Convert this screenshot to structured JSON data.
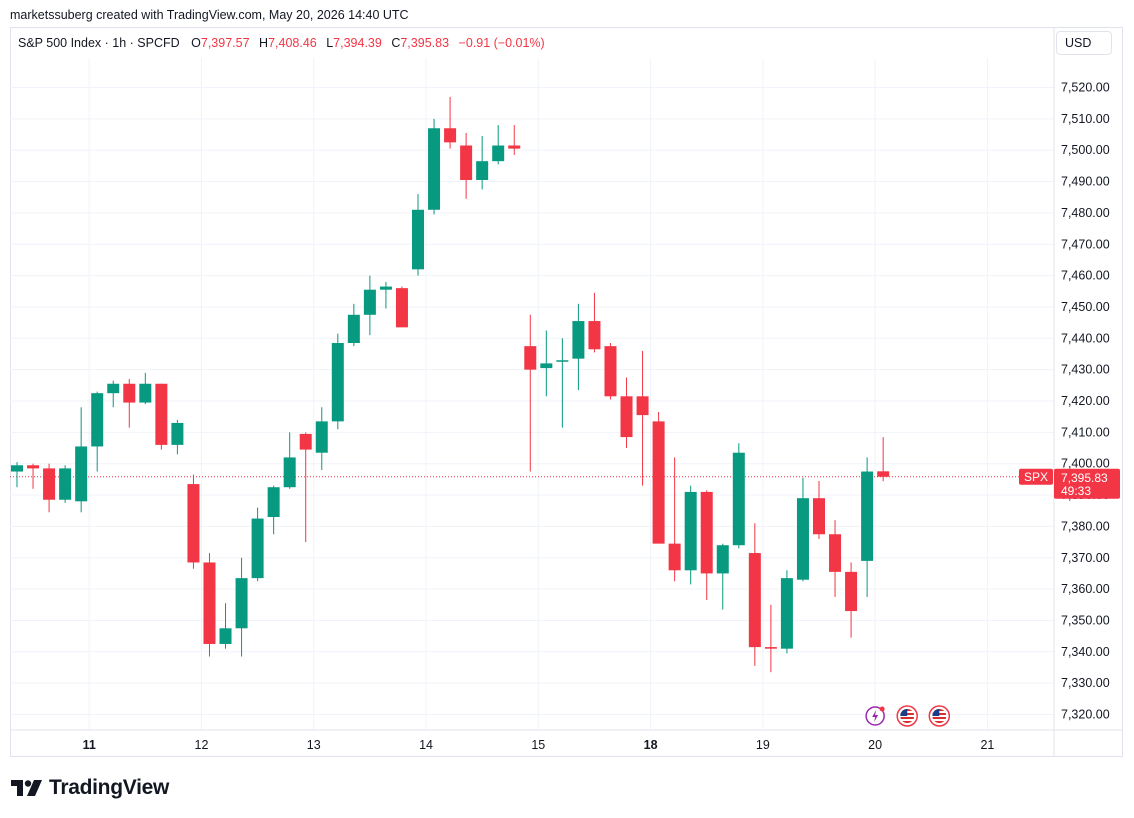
{
  "attribution": "marketssuberg created with TradingView.com, May 20, 2026 14:40 UTC",
  "legend": {
    "symbol": "S&P 500 Index · 1h · SPCFD",
    "open_label": "O",
    "open": "7,397.57",
    "high_label": "H",
    "high": "7,408.46",
    "low_label": "L",
    "low": "7,394.39",
    "close_label": "C",
    "close": "7,395.83",
    "change": "−0.91 (−0.01%)"
  },
  "currency": "USD",
  "price_badge": {
    "ticker": "SPX",
    "price": "7,395.83",
    "countdown": "49:33"
  },
  "logo_text": "TradingView",
  "colors": {
    "up": "#089981",
    "down": "#f23645",
    "grid": "#f0f3fa",
    "text": "#131722"
  },
  "chart_data": {
    "type": "candlestick",
    "title": "S&P 500 Index · 1h · SPCFD",
    "ylim": [
      7315,
      7532
    ],
    "y_ticks": [
      7320,
      7330,
      7340,
      7350,
      7360,
      7370,
      7380,
      7390,
      7400,
      7410,
      7420,
      7430,
      7440,
      7450,
      7460,
      7470,
      7480,
      7490,
      7500,
      7510,
      7520
    ],
    "y_tick_labels": [
      "7,320.00",
      "7,330.00",
      "7,340.00",
      "7,350.00",
      "7,360.00",
      "7,370.00",
      "7,380.00",
      "7,390.00",
      "7,400.00",
      "7,410.00",
      "7,420.00",
      "7,430.00",
      "7,440.00",
      "7,450.00",
      "7,460.00",
      "7,470.00",
      "7,480.00",
      "7,490.00",
      "7,500.00",
      "7,510.00",
      "7,520.00"
    ],
    "x_labels": [
      {
        "label": "11",
        "at": 4.5,
        "bold": true
      },
      {
        "label": "12",
        "at": 11.5,
        "bold": false
      },
      {
        "label": "13",
        "at": 18.5,
        "bold": false
      },
      {
        "label": "14",
        "at": 25.5,
        "bold": false
      },
      {
        "label": "15",
        "at": 32.5,
        "bold": false
      },
      {
        "label": "18",
        "at": 39.5,
        "bold": true
      },
      {
        "label": "19",
        "at": 46.5,
        "bold": false
      },
      {
        "label": "20",
        "at": 53.5,
        "bold": false
      },
      {
        "label": "21",
        "at": 60.5,
        "bold": false
      }
    ],
    "last_price": 7395.83,
    "candles": [
      [
        7397.5,
        7400.5,
        7392.5,
        7399.5
      ],
      [
        7399.5,
        7400.0,
        7392.0,
        7398.5
      ],
      [
        7398.5,
        7400.0,
        7384.5,
        7388.5
      ],
      [
        7388.5,
        7399.5,
        7387.5,
        7398.5
      ],
      [
        7388.0,
        7418.0,
        7384.5,
        7405.5
      ],
      [
        7405.5,
        7423.0,
        7397.5,
        7422.5
      ],
      [
        7422.5,
        7426.5,
        7418.0,
        7425.5
      ],
      [
        7425.5,
        7427.0,
        7411.5,
        7419.5
      ],
      [
        7419.5,
        7429.0,
        7419.0,
        7425.5
      ],
      [
        7425.5,
        7425.5,
        7404.5,
        7406.0
      ],
      [
        7406.0,
        7414.0,
        7403.0,
        7413.0
      ],
      [
        7393.5,
        7396.5,
        7366.5,
        7368.5
      ],
      [
        7368.5,
        7371.5,
        7338.5,
        7342.5
      ],
      [
        7342.5,
        7355.5,
        7341.0,
        7347.5
      ],
      [
        7347.5,
        7370.0,
        7338.5,
        7363.5
      ],
      [
        7363.5,
        7386.0,
        7362.5,
        7382.5
      ],
      [
        7383.0,
        7393.0,
        7377.5,
        7392.5
      ],
      [
        7392.5,
        7410.0,
        7392.0,
        7402.0
      ],
      [
        7409.5,
        7410.0,
        7375.0,
        7404.5
      ],
      [
        7403.5,
        7418.0,
        7398.0,
        7413.5
      ],
      [
        7413.5,
        7441.5,
        7411.0,
        7438.5
      ],
      [
        7438.5,
        7451.0,
        7437.5,
        7447.5
      ],
      [
        7447.5,
        7460.0,
        7441.0,
        7455.5
      ],
      [
        7455.5,
        7458.0,
        7449.5,
        7456.5
      ],
      [
        7456.0,
        7456.5,
        7443.5,
        7443.5
      ],
      [
        7462.0,
        7486.0,
        7460.0,
        7481.0
      ],
      [
        7481.0,
        7510.0,
        7479.5,
        7507.0
      ],
      [
        7507.0,
        7517.0,
        7500.5,
        7502.5
      ],
      [
        7501.5,
        7505.5,
        7484.5,
        7490.5
      ],
      [
        7490.5,
        7504.5,
        7487.5,
        7496.5
      ],
      [
        7496.5,
        7508.0,
        7495.5,
        7501.5
      ],
      [
        7501.5,
        7508.0,
        7498.5,
        7500.5
      ],
      [
        7437.5,
        7447.5,
        7397.5,
        7430.0
      ],
      [
        7430.5,
        7442.5,
        7421.5,
        7432.0
      ],
      [
        7433.0,
        7440.0,
        7411.5,
        7433.0
      ],
      [
        7433.5,
        7451.0,
        7423.5,
        7445.5
      ],
      [
        7445.5,
        7454.5,
        7435.5,
        7436.5
      ],
      [
        7437.5,
        7438.5,
        7420.5,
        7421.5
      ],
      [
        7421.5,
        7427.5,
        7405.0,
        7408.5
      ],
      [
        7421.5,
        7436.0,
        7393.0,
        7415.5
      ],
      [
        7413.5,
        7416.5,
        7374.5,
        7374.5
      ],
      [
        7374.5,
        7402.0,
        7362.5,
        7366.0
      ],
      [
        7366.0,
        7393.0,
        7361.5,
        7391.0
      ],
      [
        7391.0,
        7391.5,
        7356.5,
        7365.0
      ],
      [
        7365.0,
        7374.5,
        7353.5,
        7374.0
      ],
      [
        7374.0,
        7406.5,
        7373.0,
        7403.5
      ],
      [
        7371.5,
        7381.0,
        7335.5,
        7341.5
      ],
      [
        7341.5,
        7355.0,
        7333.5,
        7341.0
      ],
      [
        7341.0,
        7366.0,
        7339.5,
        7363.5
      ],
      [
        7363.0,
        7395.5,
        7362.5,
        7389.0
      ],
      [
        7389.0,
        7394.5,
        7376.0,
        7377.5
      ],
      [
        7377.5,
        7382.0,
        7357.5,
        7365.5
      ],
      [
        7365.5,
        7368.5,
        7344.5,
        7353.0
      ],
      [
        7369.0,
        7402.0,
        7357.5,
        7397.5
      ],
      [
        7397.57,
        7408.46,
        7394.39,
        7395.83
      ]
    ]
  },
  "event_markers": [
    {
      "icon": "earnings-flash-icon",
      "at": 53.5
    },
    {
      "icon": "us-flag-icon",
      "at": 55.5
    },
    {
      "icon": "us-flag-icon",
      "at": 57.5
    }
  ]
}
